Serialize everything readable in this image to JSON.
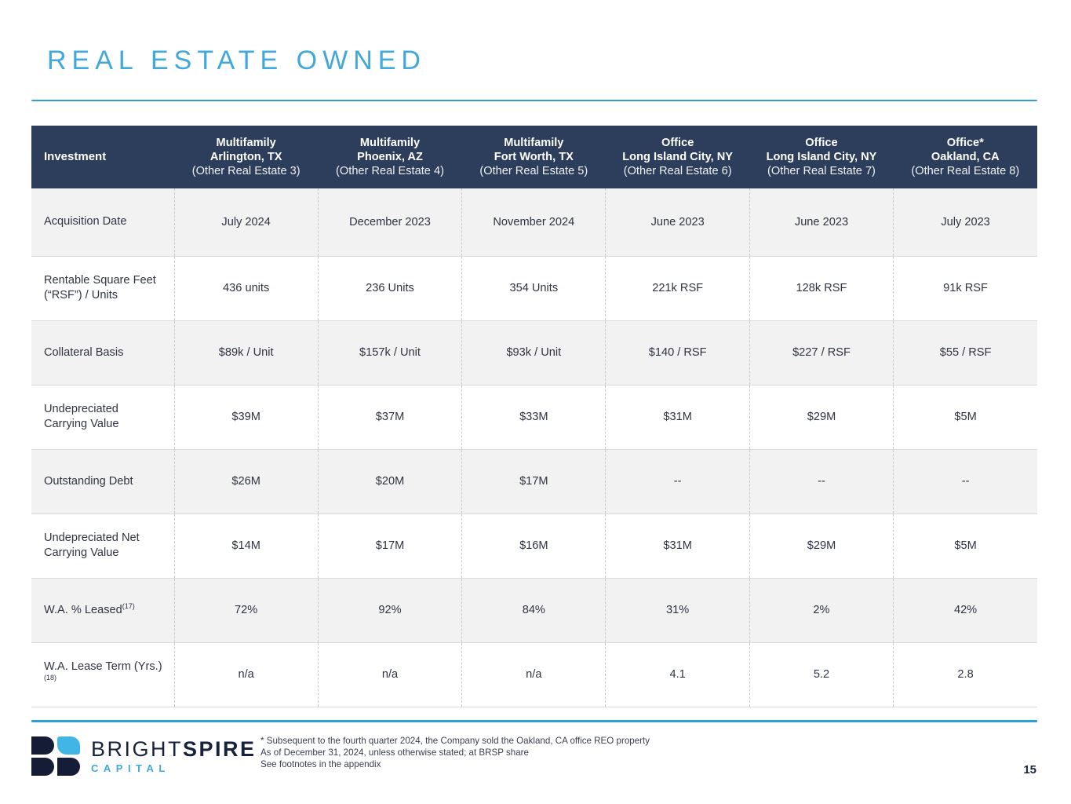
{
  "slide": {
    "title": "REAL ESTATE OWNED",
    "page_number": "15"
  },
  "table": {
    "columns": [
      {
        "lines": [
          "Investment"
        ]
      },
      {
        "lines": [
          "Multifamily",
          "Arlington, TX",
          "(Other Real Estate 3)"
        ]
      },
      {
        "lines": [
          "Multifamily",
          "Phoenix, AZ",
          "(Other Real Estate 4)"
        ]
      },
      {
        "lines": [
          "Multifamily",
          "Fort Worth, TX",
          "(Other Real Estate 5)"
        ]
      },
      {
        "lines": [
          "Office",
          "Long Island City, NY",
          "(Other Real Estate 6)"
        ]
      },
      {
        "lines": [
          "Office",
          "Long Island City, NY",
          "(Other Real Estate 7)"
        ]
      },
      {
        "lines": [
          "Office*",
          "Oakland, CA",
          "(Other Real Estate 8)"
        ]
      }
    ],
    "rows": [
      {
        "label": "Acquisition Date",
        "sup": "",
        "values": [
          "July 2024",
          "December 2023",
          "November 2024",
          "June 2023",
          "June 2023",
          "July 2023"
        ]
      },
      {
        "label": "Rentable Square Feet (“RSF”) / Units",
        "sup": "",
        "values": [
          "436 units",
          "236 Units",
          "354 Units",
          "221k RSF",
          "128k RSF",
          "91k RSF"
        ]
      },
      {
        "label": "Collateral Basis",
        "sup": "",
        "values": [
          "$89k / Unit",
          "$157k / Unit",
          "$93k / Unit",
          "$140 / RSF",
          "$227 / RSF",
          "$55 / RSF"
        ]
      },
      {
        "label": "Undepreciated Carrying Value",
        "sup": "",
        "values": [
          "$39M",
          "$37M",
          "$33M",
          "$31M",
          "$29M",
          "$5M"
        ]
      },
      {
        "label": "Outstanding Debt",
        "sup": "",
        "values": [
          "$26M",
          "$20M",
          "$17M",
          "--",
          "--",
          "--"
        ]
      },
      {
        "label": "Undepreciated Net Carrying Value",
        "sup": "",
        "values": [
          "$14M",
          "$17M",
          "$16M",
          "$31M",
          "$29M",
          "$5M"
        ]
      },
      {
        "label": "W.A. % Leased",
        "sup": "(17)",
        "values": [
          "72%",
          "92%",
          "84%",
          "31%",
          "2%",
          "42%"
        ]
      },
      {
        "label": "W.A. Lease Term (Yrs.)",
        "sup": "(18)",
        "values": [
          "n/a",
          "n/a",
          "n/a",
          "4.1",
          "5.2",
          "2.8"
        ]
      }
    ]
  },
  "footer": {
    "logo": {
      "brand_light": "BRIGHT",
      "brand_bold": "SPIRE",
      "subbrand": "CAPITAL"
    },
    "footnotes": [
      "* Subsequent to the fourth quarter 2024, the Company sold the Oakland, CA office REO property",
      "As of December 31, 2024, unless otherwise stated; at BRSP share",
      "See footnotes in the appendix"
    ]
  },
  "colors": {
    "title_blue": "#41A8DC",
    "rule_blue": "#2D9FD6",
    "header_navy": "#2D3E5C",
    "row_alt_gray": "#F2F2F2",
    "text_dark": "#2F3443",
    "logo_navy": "#141D35",
    "logo_blue": "#41B5E5"
  }
}
